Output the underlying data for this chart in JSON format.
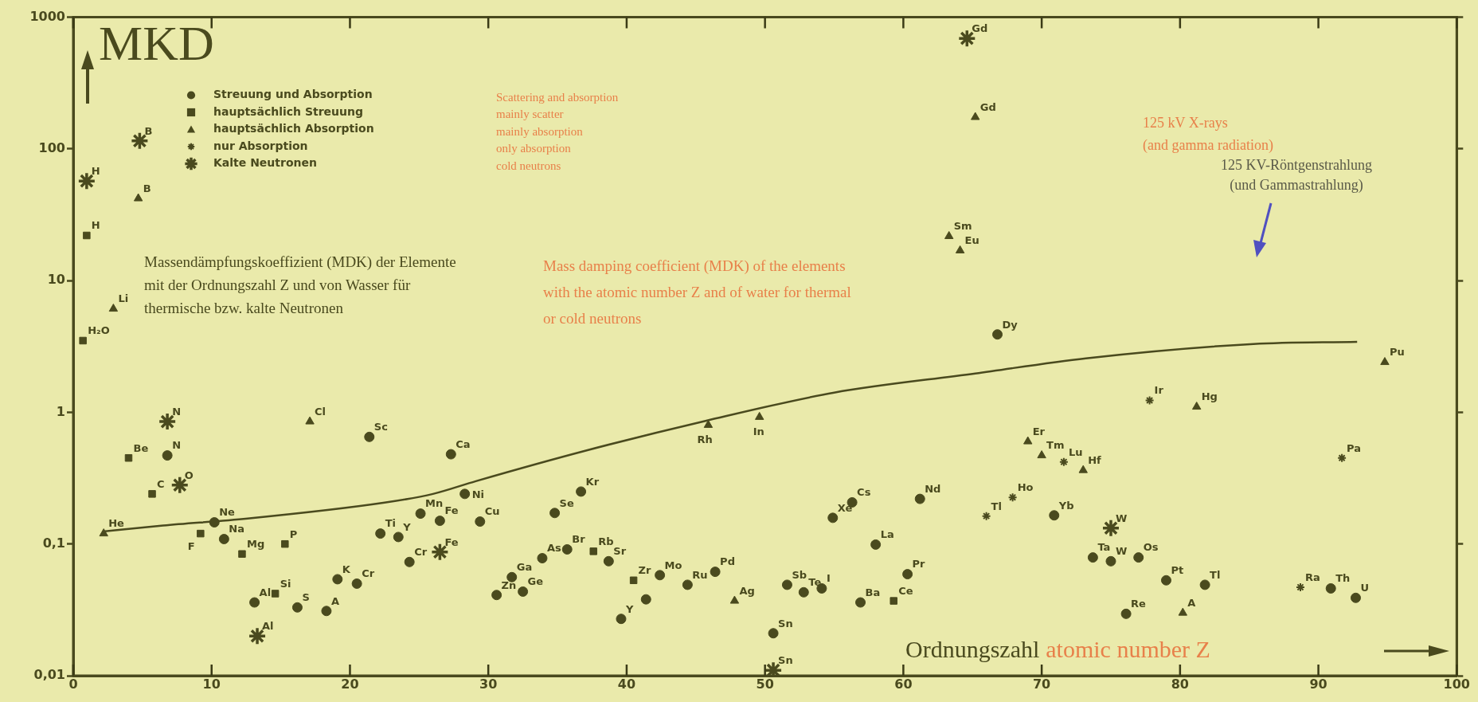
{
  "chart_data": {
    "type": "scatter",
    "xlabel": "Ordnungszahl",
    "ylabel": "MKD",
    "log": "y",
    "grid": false,
    "legend": "top left",
    "xlim": [
      0,
      100
    ],
    "xticks": [
      0,
      10,
      20,
      30,
      40,
      50,
      60,
      70,
      80,
      90,
      100
    ],
    "ylim": [
      0.01,
      1000
    ],
    "yticks": [
      {
        "value": 0.01,
        "label": "0,01"
      },
      {
        "value": 0.1,
        "label": "0,1"
      },
      1,
      10,
      100,
      1000
    ],
    "series": [
      {
        "name": "Streuung und Absorption",
        "marker": "circle",
        "color": "#4a4a1e",
        "x": [
          6.8,
          10.2,
          10.9,
          13.1,
          16.2,
          18.3,
          19.1,
          20.5,
          21.4,
          27.3,
          22.2,
          23.5,
          24.3,
          25.1,
          26.5,
          28.3,
          29.4,
          30.6,
          31.7,
          32.5,
          33.9,
          34.8,
          35.7,
          36.7,
          38.7,
          39.6,
          41.4,
          42.4,
          44.4,
          46.4,
          50.6,
          51.6,
          52.8,
          54.1,
          54.9,
          56.3,
          56.9,
          58,
          60.3,
          61.2,
          66.8,
          70.9,
          73.7,
          75,
          77,
          79,
          76.1,
          81.8,
          90.9,
          92.7
        ],
        "values": [
          0.47,
          0.146,
          0.109,
          0.036,
          0.033,
          0.031,
          0.054,
          0.05,
          0.65,
          0.48,
          0.12,
          0.113,
          0.073,
          0.17,
          0.15,
          0.24,
          0.148,
          0.041,
          0.056,
          0.0435,
          0.078,
          0.172,
          0.091,
          0.25,
          0.074,
          0.027,
          0.038,
          0.058,
          0.049,
          0.0615,
          0.021,
          0.049,
          0.043,
          0.046,
          0.158,
          0.207,
          0.036,
          0.099,
          0.059,
          0.22,
          3.9,
          0.165,
          0.079,
          0.074,
          0.079,
          0.053,
          0.0295,
          0.049,
          0.046,
          0.039
        ]
      },
      {
        "name": "hauptsächlich Streuung",
        "marker": "square",
        "color": "#4a4a1e",
        "x": [
          0.97,
          0.7,
          4.0,
          5.7,
          9.2,
          12.2,
          15.3,
          14.6,
          37.6,
          40.5,
          59.3
        ],
        "values": [
          22,
          3.5,
          0.45,
          0.24,
          0.12,
          0.084,
          0.1,
          0.042,
          0.088,
          0.053,
          0.037
        ]
      },
      {
        "name": "hauptsächlich Absorption",
        "marker": "triangle",
        "color": "#4a4a1e",
        "x": [
          4.7,
          2.9,
          2.2,
          17.1,
          45.9,
          49.6,
          47.8,
          65.2,
          63.3,
          64.1,
          94.8,
          81.2,
          69,
          70,
          73,
          80.2
        ],
        "values": [
          42,
          6.1,
          0.12,
          0.85,
          0.8,
          0.92,
          0.037,
          174,
          21.7,
          16.9,
          2.4,
          1.1,
          0.6,
          0.47,
          0.363,
          0.03
        ]
      },
      {
        "name": "nur Absorption",
        "marker": "cross",
        "color": "#4a4a1e",
        "x": [
          77.8,
          71.6,
          67.9,
          66,
          88.7,
          91.7
        ],
        "values": [
          1.23,
          0.42,
          0.226,
          0.163,
          0.047,
          0.45
        ]
      },
      {
        "name": "Kalte Neutronen",
        "marker": "cross",
        "color": "#4a4a1e",
        "x": [
          4.8,
          0.97,
          6.8,
          7.7,
          13.3,
          26.5,
          50.6,
          64.6,
          75
        ],
        "values": [
          115,
          57,
          0.85,
          0.28,
          0.02,
          0.087,
          0.011,
          690,
          0.132
        ]
      },
      {
        "type": "line",
        "marker": "none",
        "line_style": "solid",
        "color": "#4a4a1e",
        "x": [
          2.3,
          6.5,
          12.6,
          22.5,
          26,
          29.1,
          37,
          45.7,
          55,
          65.2,
          73.2,
          85.3,
          92.8
        ],
        "values": [
          0.125,
          0.138,
          0.156,
          0.206,
          0.24,
          0.3,
          0.51,
          0.86,
          1.41,
          1.97,
          2.57,
          3.3,
          3.43
        ]
      }
    ],
    "annotations": [
      "Scattering and absorption",
      "mainly scatter",
      "mainly absorption",
      "only absorption",
      "cold neutrons",
      "Massendämpfungskoeffizient (MDK) der Elemente mit der Ordnungszahl Z und von Wasser für thermische bzw. kalte Neutronen",
      "Mass damping coefficient (MDK) of the elements with the atomic number Z and of water for thermal or cold neutrons",
      "125 kV X-rays (and gamma radiation)",
      "125 KV-Röntgenstrahlung (und Gammastrahlung)",
      "atomic number Z",
      {
        "text": "N",
        "x": 6.8,
        "y": 0.47
      },
      {
        "text": "Ne",
        "x": 10.2,
        "y": 0.146
      },
      {
        "text": "Na",
        "x": 10.9,
        "y": 0.109
      },
      {
        "text": "Al",
        "x": 13.1,
        "y": 0.036
      },
      {
        "text": "S",
        "x": 16.2,
        "y": 0.033
      },
      {
        "text": "A",
        "x": 18.3,
        "y": 0.031
      },
      {
        "text": "K",
        "x": 19.1,
        "y": 0.054
      },
      {
        "text": "Cr",
        "x": 20.5,
        "y": 0.05
      },
      {
        "text": "Sc",
        "x": 21.4,
        "y": 0.65
      },
      {
        "text": "Ca",
        "x": 27.3,
        "y": 0.48
      },
      {
        "text": "Ti",
        "x": 22.2,
        "y": 0.12
      },
      {
        "text": "Y",
        "x": 23.5,
        "y": 0.113
      },
      {
        "text": "Cr",
        "x": 24.3,
        "y": 0.073
      },
      {
        "text": "Mn",
        "x": 25.1,
        "y": 0.17
      },
      {
        "text": "Fe",
        "x": 26.5,
        "y": 0.15
      },
      {
        "text": "Ni",
        "x": 28.3,
        "y": 0.24
      },
      {
        "text": "Cu",
        "x": 29.4,
        "y": 0.148
      },
      {
        "text": "Zn",
        "x": 30.6,
        "y": 0.041
      },
      {
        "text": "Ga",
        "x": 31.7,
        "y": 0.056
      },
      {
        "text": "Ge",
        "x": 32.5,
        "y": 0.0435
      },
      {
        "text": "As",
        "x": 33.9,
        "y": 0.078
      },
      {
        "text": "Se",
        "x": 34.8,
        "y": 0.172
      },
      {
        "text": "Br",
        "x": 35.7,
        "y": 0.091
      },
      {
        "text": "Kr",
        "x": 36.7,
        "y": 0.25
      },
      {
        "text": "Sr",
        "x": 38.7,
        "y": 0.074
      },
      {
        "text": "Y",
        "x": 39.6,
        "y": 0.027
      },
      {
        "text": "Mo",
        "x": 42.4,
        "y": 0.058
      },
      {
        "text": "Ru",
        "x": 44.4,
        "y": 0.049
      },
      {
        "text": "Pd",
        "x": 46.4,
        "y": 0.0615
      },
      {
        "text": "Sn",
        "x": 50.6,
        "y": 0.021
      },
      {
        "text": "Sb",
        "x": 51.6,
        "y": 0.049
      },
      {
        "text": "Te",
        "x": 52.8,
        "y": 0.043
      },
      {
        "text": "I",
        "x": 54.1,
        "y": 0.046
      },
      {
        "text": "Xe",
        "x": 54.9,
        "y": 0.158
      },
      {
        "text": "Cs",
        "x": 56.3,
        "y": 0.207
      },
      {
        "text": "Ba",
        "x": 56.9,
        "y": 0.036
      },
      {
        "text": "La",
        "x": 58,
        "y": 0.099
      },
      {
        "text": "Pr",
        "x": 60.3,
        "y": 0.059
      },
      {
        "text": "Nd",
        "x": 61.2,
        "y": 0.22
      },
      {
        "text": "Dy",
        "x": 66.8,
        "y": 3.9
      },
      {
        "text": "Yb",
        "x": 70.9,
        "y": 0.165
      },
      {
        "text": "Ta",
        "x": 73.7,
        "y": 0.079
      },
      {
        "text": "W",
        "x": 75,
        "y": 0.074
      },
      {
        "text": "Os",
        "x": 77,
        "y": 0.079
      },
      {
        "text": "Pt",
        "x": 79,
        "y": 0.053
      },
      {
        "text": "Re",
        "x": 76.1,
        "y": 0.0295
      },
      {
        "text": "Tl",
        "x": 81.8,
        "y": 0.049
      },
      {
        "text": "Th",
        "x": 90.9,
        "y": 0.046
      },
      {
        "text": "U",
        "x": 92.7,
        "y": 0.039
      },
      {
        "text": "H",
        "x": 0.97,
        "y": 22
      },
      {
        "text": "H₂O",
        "x": 0.7,
        "y": 3.5
      },
      {
        "text": "Be",
        "x": 4.0,
        "y": 0.45
      },
      {
        "text": "C",
        "x": 5.7,
        "y": 0.24
      },
      {
        "text": "F",
        "x": 9.2,
        "y": 0.12
      },
      {
        "text": "Mg",
        "x": 12.2,
        "y": 0.084
      },
      {
        "text": "P",
        "x": 15.3,
        "y": 0.1
      },
      {
        "text": "Si",
        "x": 14.6,
        "y": 0.042
      },
      {
        "text": "Rb",
        "x": 37.6,
        "y": 0.088
      },
      {
        "text": "Zr",
        "x": 40.5,
        "y": 0.053
      },
      {
        "text": "Ce",
        "x": 59.3,
        "y": 0.037
      },
      {
        "text": "B",
        "x": 4.7,
        "y": 42
      },
      {
        "text": "Li",
        "x": 2.9,
        "y": 6.1
      },
      {
        "text": "He",
        "x": 2.2,
        "y": 0.12
      },
      {
        "text": "Cl",
        "x": 17.1,
        "y": 0.85
      },
      {
        "text": "Rh",
        "x": 45.9,
        "y": 0.8
      },
      {
        "text": "In",
        "x": 49.6,
        "y": 0.92
      },
      {
        "text": "Ag",
        "x": 47.8,
        "y": 0.037
      },
      {
        "text": "Gd",
        "x": 65.2,
        "y": 174
      },
      {
        "text": "Sm",
        "x": 63.3,
        "y": 21.7
      },
      {
        "text": "Eu",
        "x": 64.1,
        "y": 16.9
      },
      {
        "text": "Pu",
        "x": 94.8,
        "y": 2.4
      },
      {
        "text": "Hg",
        "x": 81.2,
        "y": 1.1
      },
      {
        "text": "Er",
        "x": 69,
        "y": 0.6
      },
      {
        "text": "Tm",
        "x": 70,
        "y": 0.47
      },
      {
        "text": "Hf",
        "x": 73,
        "y": 0.363
      },
      {
        "text": "A",
        "x": 80.2,
        "y": 0.03
      },
      {
        "text": "Ir",
        "x": 77.8,
        "y": 1.23
      },
      {
        "text": "Lu",
        "x": 71.6,
        "y": 0.42
      },
      {
        "text": "Ho",
        "x": 67.9,
        "y": 0.226
      },
      {
        "text": "Tl",
        "x": 66,
        "y": 0.163
      },
      {
        "text": "Ra",
        "x": 88.7,
        "y": 0.047
      },
      {
        "text": "Pa",
        "x": 91.7,
        "y": 0.45
      },
      {
        "text": "B",
        "x": 4.8,
        "y": 115
      },
      {
        "text": "H",
        "x": 0.97,
        "y": 57
      },
      {
        "text": "N",
        "x": 6.8,
        "y": 0.85
      },
      {
        "text": "O",
        "x": 7.7,
        "y": 0.28
      },
      {
        "text": "Al",
        "x": 13.3,
        "y": 0.02
      },
      {
        "text": "Fe",
        "x": 26.5,
        "y": 0.087
      },
      {
        "text": "Sn",
        "x": 50.6,
        "y": 0.011
      },
      {
        "text": "Gd",
        "x": 64.6,
        "y": 690
      },
      {
        "text": "W",
        "x": 75,
        "y": 0.132
      }
    ]
  }
}
